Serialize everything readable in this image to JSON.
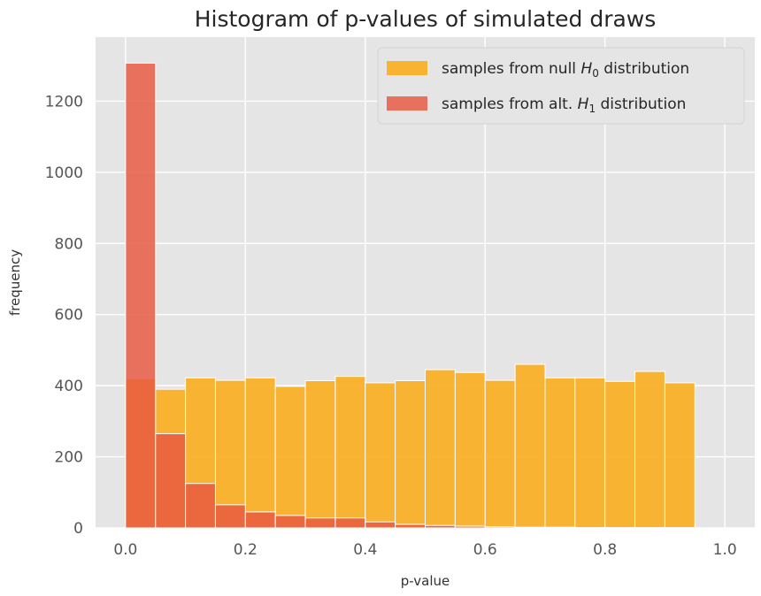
{
  "chart_data": {
    "type": "bar",
    "title": "Histogram of p-values of simulated draws",
    "xlabel": "p-value",
    "ylabel": "frequency",
    "xlim": [
      -0.05,
      1.05
    ],
    "ylim": [
      0,
      1380
    ],
    "xticks": [
      0.0,
      0.2,
      0.4,
      0.6,
      0.8,
      1.0
    ],
    "xtick_labels": [
      "0.0",
      "0.2",
      "0.4",
      "0.6",
      "0.8",
      "1.0"
    ],
    "yticks": [
      0,
      200,
      400,
      600,
      800,
      1000,
      1200
    ],
    "ytick_labels": [
      "0",
      "200",
      "400",
      "600",
      "800",
      "1000",
      "1200"
    ],
    "bin_edges": [
      0.0,
      0.05,
      0.1,
      0.15,
      0.2,
      0.25,
      0.3,
      0.35,
      0.4,
      0.45,
      0.5,
      0.55,
      0.6,
      0.65,
      0.7,
      0.75,
      0.8,
      0.85,
      0.9,
      0.95,
      1.0
    ],
    "grid": true,
    "legend_position": "top-right",
    "series": [
      {
        "name": "samples from null H₀ distribution",
        "legend_prefix": "samples from null ",
        "legend_symbol": "H",
        "legend_subscript": "0",
        "legend_suffix": " distribution",
        "color": "#f9ad1f",
        "values": [
          420,
          390,
          422,
          415,
          422,
          398,
          414,
          426,
          408,
          414,
          445,
          437,
          415,
          460,
          422,
          422,
          412,
          440,
          408,
          0
        ]
      },
      {
        "name": "samples from alt. H₁ distribution",
        "legend_prefix": "samples from alt. ",
        "legend_symbol": "H",
        "legend_subscript": "1",
        "legend_suffix": " distribution",
        "color": "#e8573f",
        "values": [
          1307,
          265,
          125,
          65,
          45,
          35,
          28,
          28,
          17,
          10,
          7,
          5,
          3,
          2,
          2,
          1,
          1,
          1,
          1,
          0
        ]
      }
    ]
  },
  "colors": {
    "plot_background": "#e5e5e5",
    "grid": "#ffffff",
    "overlap_hint": "#e8573f"
  }
}
